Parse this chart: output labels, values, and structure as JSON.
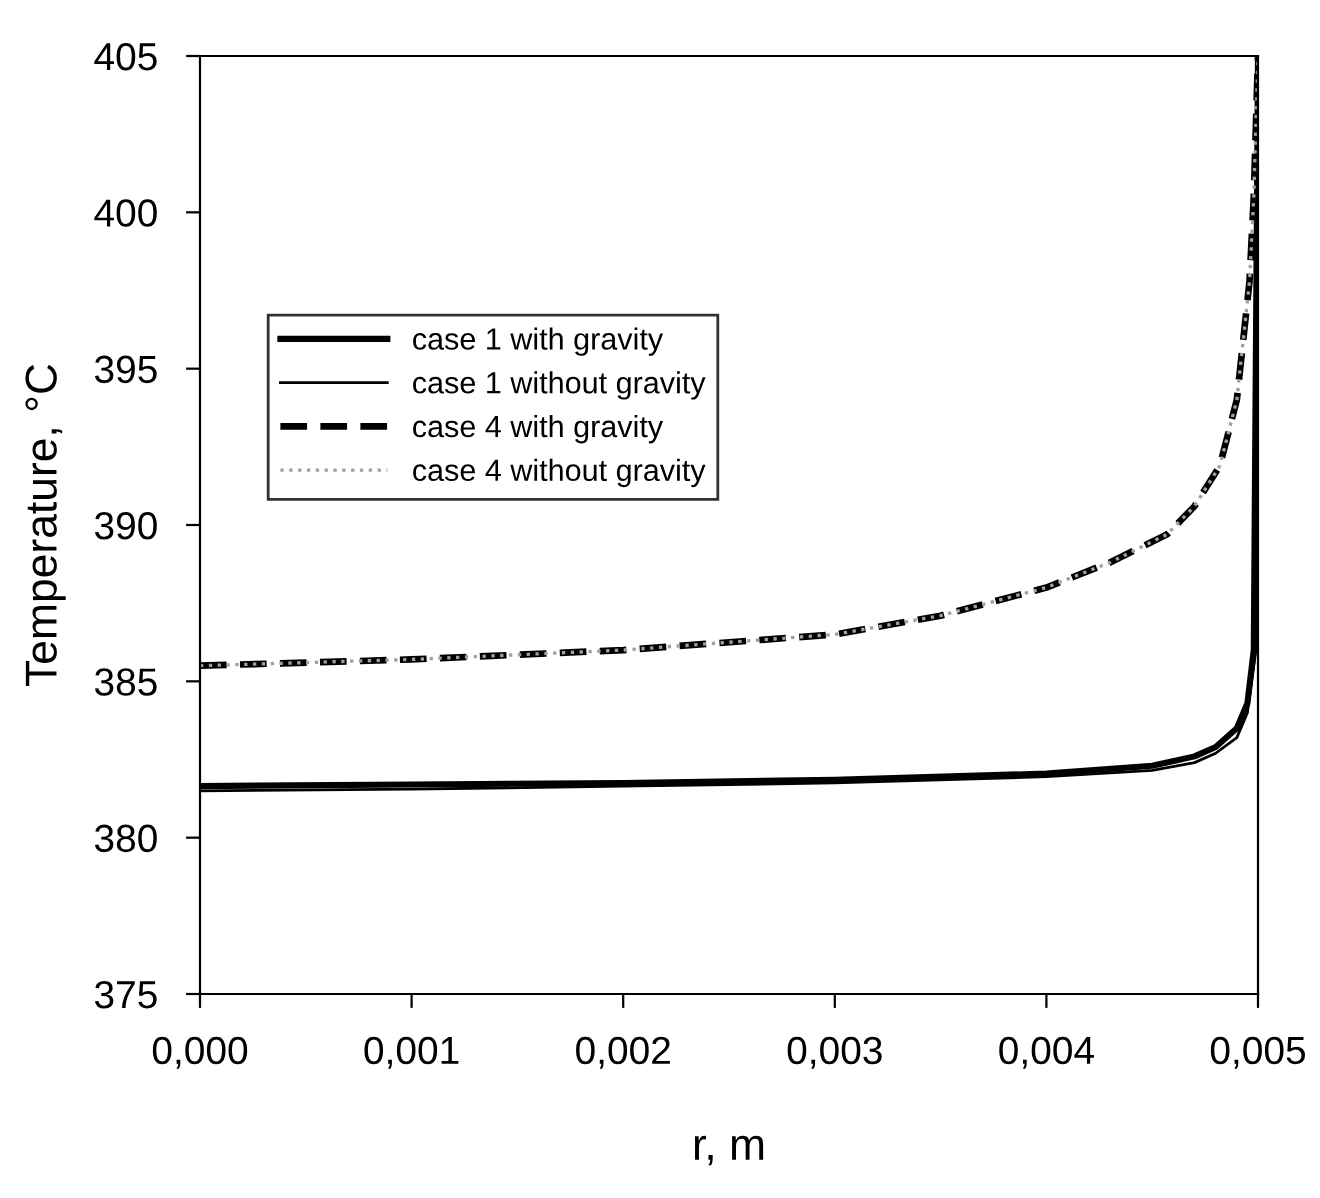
{
  "chart_data": {
    "type": "line",
    "xlabel": "r, m",
    "ylabel": "Temperature, °C",
    "xlim": [
      0,
      0.005
    ],
    "ylim": [
      375,
      405
    ],
    "xticks": [
      {
        "value": 0,
        "label": "0,000"
      },
      {
        "value": 0.001,
        "label": "0,001"
      },
      {
        "value": 0.002,
        "label": "0,002"
      },
      {
        "value": 0.003,
        "label": "0,003"
      },
      {
        "value": 0.004,
        "label": "0,004"
      },
      {
        "value": 0.005,
        "label": "0,005"
      }
    ],
    "yticks": [
      375,
      380,
      385,
      390,
      395,
      400,
      405
    ],
    "grid": false,
    "legend": "top left",
    "marker": "none",
    "series": [
      {
        "name": "case 1 with gravity",
        "color": "#000000",
        "line_style": "solid",
        "x": [
          0,
          0.001,
          0.002,
          0.003,
          0.004,
          0.0045,
          0.0047,
          0.0048,
          0.0049,
          0.00495,
          0.00498,
          0.005
        ],
        "values": [
          381.65,
          381.7,
          381.75,
          381.85,
          382.05,
          382.3,
          382.6,
          382.9,
          383.5,
          384.3,
          386,
          405
        ]
      },
      {
        "name": "case 1 without gravity",
        "color": "#000000",
        "line_style": "solid",
        "x": [
          0,
          0.001,
          0.002,
          0.003,
          0.004,
          0.0045,
          0.0047,
          0.0048,
          0.0049,
          0.00495,
          0.00499,
          0.005
        ],
        "values": [
          381.5,
          381.55,
          381.65,
          381.75,
          381.95,
          382.15,
          382.4,
          382.7,
          383.2,
          384,
          386,
          405
        ]
      },
      {
        "name": "case 4 with gravity",
        "color": "#000000",
        "line_style": "dashed",
        "x": [
          0,
          0.001,
          0.002,
          0.003,
          0.0035,
          0.004,
          0.0043,
          0.00457,
          0.0047,
          0.00482,
          0.0049,
          0.00496,
          0.00498,
          0.005
        ],
        "values": [
          385.5,
          385.7,
          386,
          386.5,
          387.1,
          388,
          388.8,
          389.7,
          390.6,
          391.9,
          394,
          397.8,
          400.5,
          405
        ]
      },
      {
        "name": "case 4 without gravity",
        "color": "#a0a0a0",
        "line_style": "dotted",
        "x": [
          0,
          0.001,
          0.002,
          0.003,
          0.0035,
          0.004,
          0.0043,
          0.00457,
          0.0047,
          0.00482,
          0.0049,
          0.00496,
          0.00498,
          0.005
        ],
        "values": [
          385.5,
          385.7,
          386,
          386.5,
          387.1,
          388,
          388.8,
          389.7,
          390.6,
          391.9,
          394,
          397.8,
          400.5,
          405
        ]
      }
    ]
  }
}
